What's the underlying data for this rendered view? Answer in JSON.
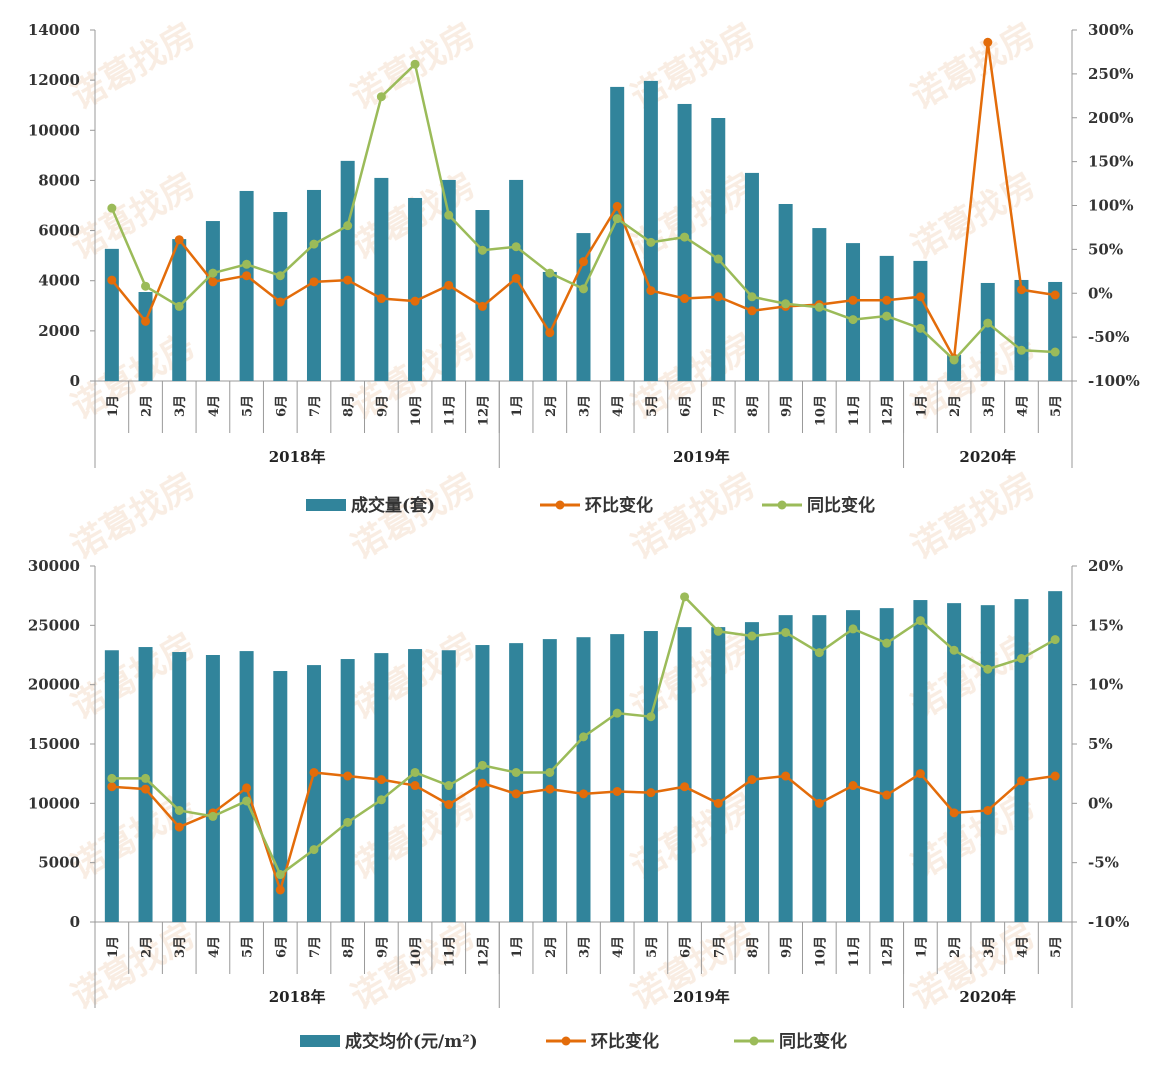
{
  "watermark": "诺葛找房",
  "colors": {
    "bar": "#31849b",
    "mom": "#e36c0a",
    "yoy": "#9bbb59",
    "axis": "#999999"
  },
  "chart_data": [
    {
      "type": "bar+line",
      "categories": [
        "1月",
        "2月",
        "3月",
        "4月",
        "5月",
        "6月",
        "7月",
        "8月",
        "9月",
        "10月",
        "11月",
        "12月",
        "1月",
        "2月",
        "3月",
        "4月",
        "5月",
        "6月",
        "7月",
        "8月",
        "9月",
        "10月",
        "11月",
        "12月",
        "1月",
        "2月",
        "3月",
        "4月",
        "5月"
      ],
      "groups": [
        {
          "label": "2018年",
          "count": 12
        },
        {
          "label": "2019年",
          "count": 12
        },
        {
          "label": "2020年",
          "count": 5
        }
      ],
      "ylim_left": [
        0,
        14000
      ],
      "yticks_left": [
        "0",
        "2000",
        "4000",
        "6000",
        "8000",
        "10000",
        "12000",
        "14000"
      ],
      "ylim_right": [
        -100,
        300
      ],
      "yticks_right": [
        "-100%",
        "-50%",
        "0%",
        "50%",
        "100%",
        "150%",
        "200%",
        "250%",
        "300%"
      ],
      "grid": false,
      "legend_position": "bottom",
      "series": [
        {
          "name": "成交量(套)",
          "kind": "bar",
          "axis": "left",
          "values": [
            5270,
            3550,
            5660,
            6380,
            7580,
            6740,
            7620,
            8780,
            8100,
            7300,
            8020,
            6820,
            8020,
            4350,
            5900,
            11730,
            11970,
            11050,
            10490,
            8300,
            7060,
            6100,
            5500,
            4990,
            4790,
            1040,
            3910,
            4030,
            3950
          ]
        },
        {
          "name": "环比变化",
          "kind": "line",
          "axis": "right",
          "values": [
            15,
            -32,
            61,
            13,
            20,
            -10,
            13,
            15,
            -6,
            -9,
            9,
            -15,
            17,
            -45,
            36,
            99,
            3,
            -6,
            -4,
            -20,
            -15,
            -13,
            -8,
            -8,
            -4,
            -74,
            286,
            4,
            -2
          ]
        },
        {
          "name": "同比变化",
          "kind": "line",
          "axis": "right",
          "values": [
            97,
            8,
            -15,
            23,
            33,
            20,
            56,
            77,
            224,
            261,
            89,
            49,
            53,
            23,
            5,
            85,
            58,
            64,
            39,
            -4,
            -12,
            -16,
            -30,
            -26,
            -40,
            -76,
            -34,
            -65,
            -67
          ]
        }
      ]
    },
    {
      "type": "bar+line",
      "categories": [
        "1月",
        "2月",
        "3月",
        "4月",
        "5月",
        "6月",
        "7月",
        "8月",
        "9月",
        "10月",
        "11月",
        "12月",
        "1月",
        "2月",
        "3月",
        "4月",
        "5月",
        "6月",
        "7月",
        "8月",
        "9月",
        "10月",
        "11月",
        "12月",
        "1月",
        "2月",
        "3月",
        "4月",
        "5月"
      ],
      "groups": [
        {
          "label": "2018年",
          "count": 12
        },
        {
          "label": "2019年",
          "count": 12
        },
        {
          "label": "2020年",
          "count": 5
        }
      ],
      "ylim_left": [
        0,
        30000
      ],
      "yticks_left": [
        "0",
        "5000",
        "10000",
        "15000",
        "20000",
        "25000",
        "30000"
      ],
      "ylim_right": [
        -10,
        20
      ],
      "yticks_right": [
        "-10%",
        "-5%",
        "0%",
        "5%",
        "10%",
        "15%",
        "20%"
      ],
      "grid": false,
      "legend_position": "bottom",
      "series": [
        {
          "name": "成交均价(元/m²)",
          "kind": "bar",
          "axis": "left",
          "values": [
            22900,
            23170,
            22750,
            22500,
            22830,
            21150,
            21650,
            22160,
            22660,
            23000,
            22900,
            23340,
            23500,
            23840,
            24000,
            24260,
            24520,
            24850,
            24850,
            25270,
            25860,
            25860,
            26280,
            26450,
            27130,
            26870,
            26700,
            27210,
            27880
          ]
        },
        {
          "name": "环比变化",
          "kind": "line",
          "axis": "right",
          "values": [
            1.4,
            1.2,
            -2.0,
            -0.8,
            1.3,
            -7.3,
            2.6,
            2.3,
            2.0,
            1.5,
            -0.1,
            1.7,
            0.8,
            1.2,
            0.8,
            1.0,
            0.9,
            1.4,
            0.0,
            2.0,
            2.3,
            0.0,
            1.5,
            0.7,
            2.5,
            -0.8,
            -0.6,
            1.9,
            2.3
          ]
        },
        {
          "name": "同比变化",
          "kind": "line",
          "axis": "right",
          "values": [
            2.1,
            2.1,
            -0.6,
            -1.1,
            0.2,
            -6.0,
            -3.9,
            -1.6,
            0.3,
            2.6,
            1.5,
            3.2,
            2.6,
            2.6,
            5.6,
            7.6,
            7.3,
            17.4,
            14.5,
            14.1,
            14.4,
            12.7,
            14.7,
            13.5,
            15.4,
            12.9,
            11.3,
            12.2,
            13.8
          ]
        }
      ]
    }
  ]
}
